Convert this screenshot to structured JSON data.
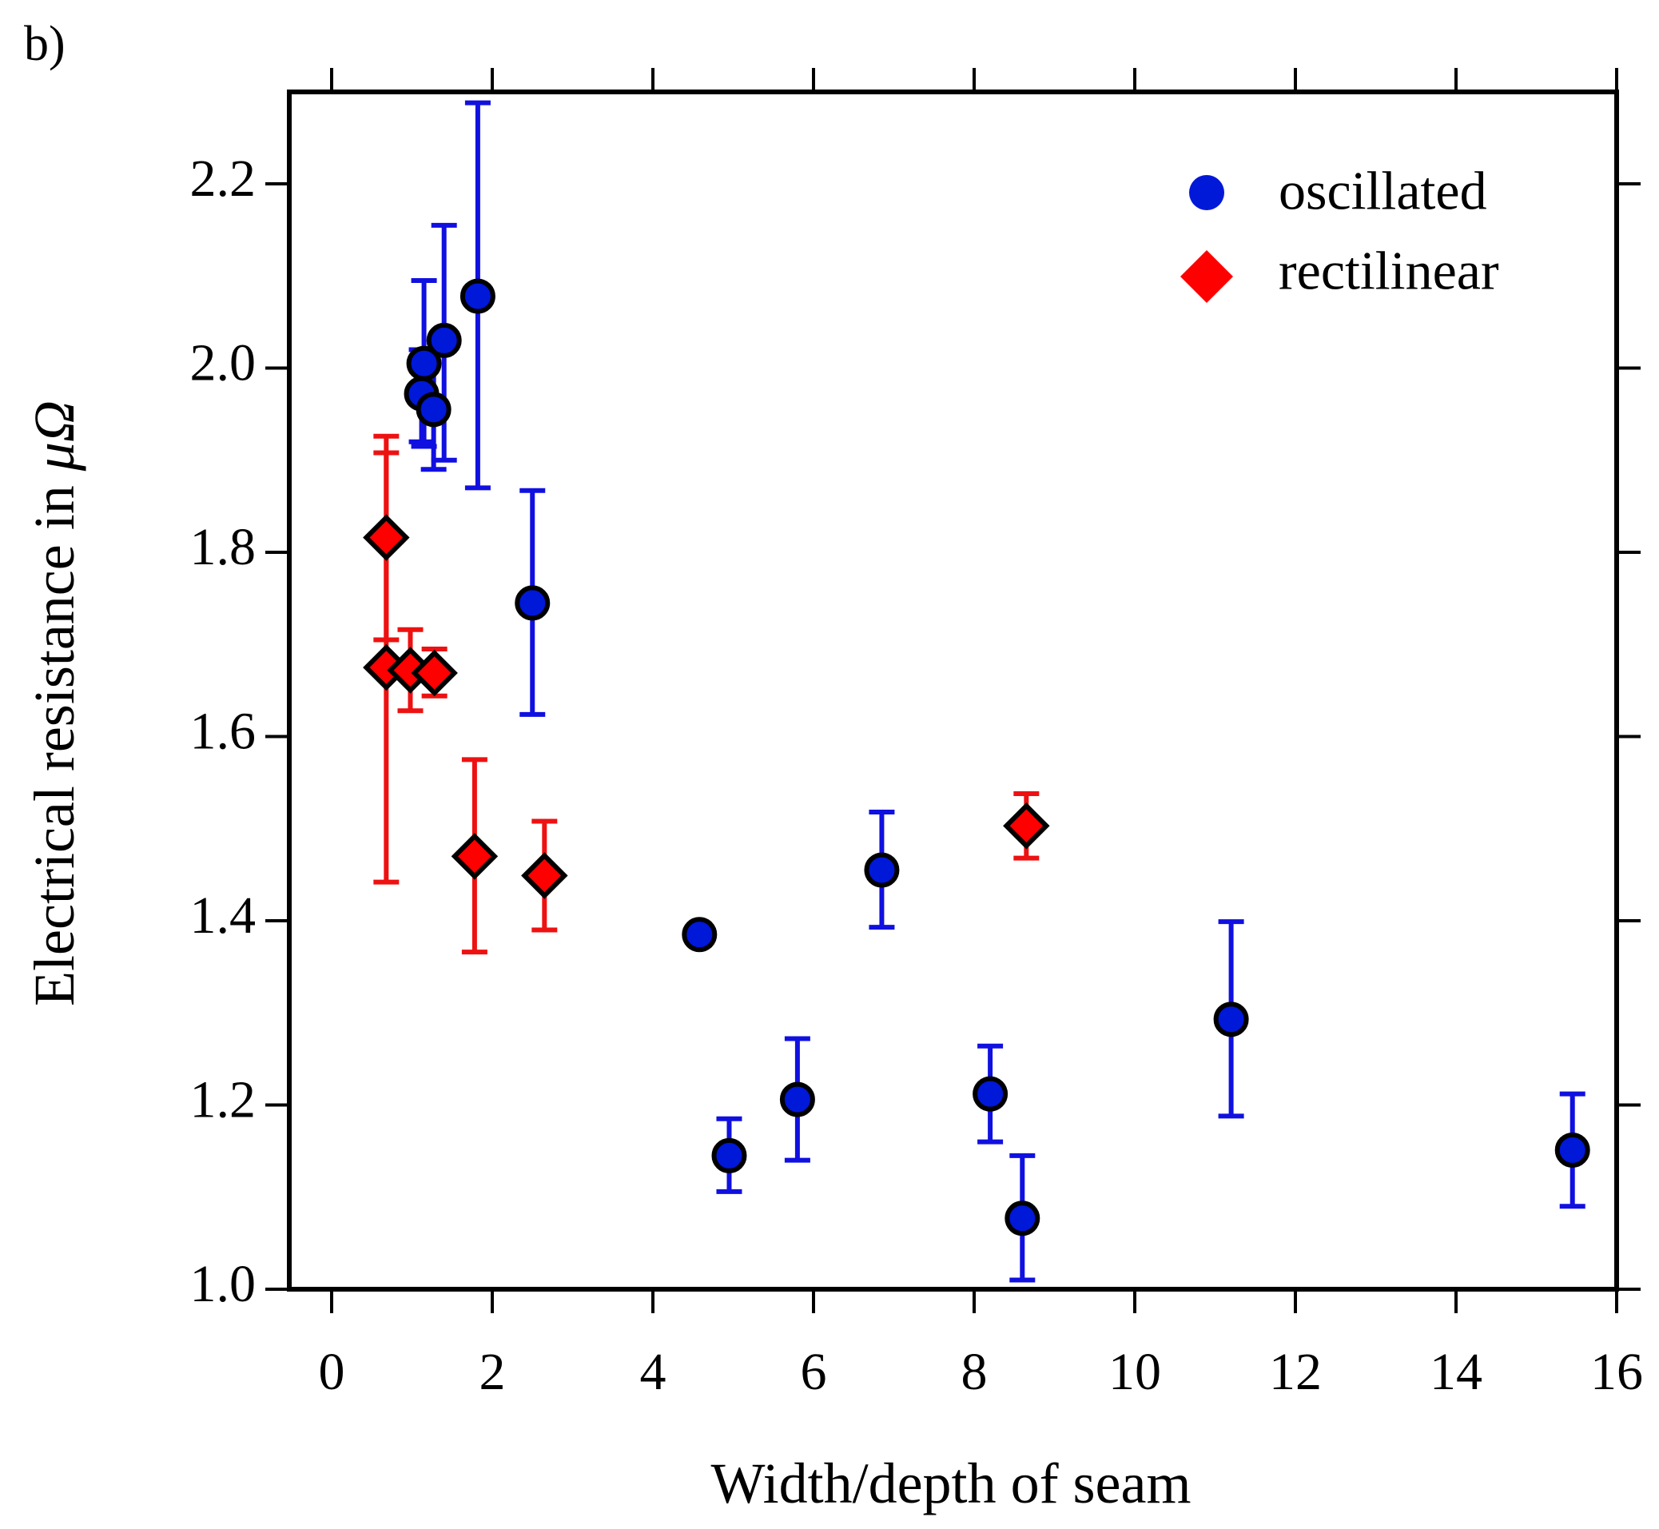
{
  "chart_data": {
    "type": "scatter",
    "panel_label": "b)",
    "xlabel": "Width/depth of seam",
    "ylabel_prefix": "Electrical resistance in ",
    "ylabel_unit": "μΩ",
    "xlim": [
      -0.5,
      16
    ],
    "ylim": [
      1.0,
      2.3
    ],
    "x_ticks": [
      0,
      2,
      4,
      6,
      8,
      10,
      12,
      14,
      16
    ],
    "x_tick_labels": [
      "0",
      "2",
      "4",
      "6",
      "8",
      "10",
      "12",
      "14",
      "16"
    ],
    "y_ticks": [
      1.0,
      1.2,
      1.4,
      1.6,
      1.8,
      2.0,
      2.2
    ],
    "y_tick_labels": [
      "1.0",
      "1.2",
      "1.4",
      "1.6",
      "1.8",
      "2.0",
      "2.2"
    ],
    "legend_position": "top-right",
    "colors": {
      "oscillated": "#0018d8",
      "oscillated_err": "#1010e0",
      "rectilinear": "#ff0000",
      "rectilinear_err": "#ee1111"
    },
    "series": [
      {
        "name": "oscillated",
        "marker": "circle",
        "points": [
          {
            "x": 1.15,
            "y": 2.005,
            "lo": 1.915,
            "hi": 2.095
          },
          {
            "x": 1.12,
            "y": 1.972,
            "lo": 1.92,
            "hi": 2.02
          },
          {
            "x": 1.27,
            "y": 1.955,
            "lo": 1.89,
            "hi": 2.02
          },
          {
            "x": 1.4,
            "y": 2.03,
            "lo": 1.9,
            "hi": 2.155
          },
          {
            "x": 1.82,
            "y": 2.078,
            "lo": 1.87,
            "hi": 2.288
          },
          {
            "x": 2.5,
            "y": 1.745,
            "lo": 1.624,
            "hi": 1.867
          },
          {
            "x": 4.58,
            "y": 1.385,
            "lo": null,
            "hi": null
          },
          {
            "x": 4.95,
            "y": 1.145,
            "lo": 1.106,
            "hi": 1.185
          },
          {
            "x": 5.8,
            "y": 1.206,
            "lo": 1.14,
            "hi": 1.272
          },
          {
            "x": 6.85,
            "y": 1.455,
            "lo": 1.393,
            "hi": 1.518
          },
          {
            "x": 8.2,
            "y": 1.212,
            "lo": 1.16,
            "hi": 1.264
          },
          {
            "x": 8.6,
            "y": 1.077,
            "lo": 1.01,
            "hi": 1.145
          },
          {
            "x": 11.2,
            "y": 1.293,
            "lo": 1.188,
            "hi": 1.399
          },
          {
            "x": 15.45,
            "y": 1.151,
            "lo": 1.09,
            "hi": 1.212
          }
        ]
      },
      {
        "name": "rectilinear",
        "marker": "diamond",
        "points": [
          {
            "x": 0.68,
            "y": 1.816,
            "lo": 1.705,
            "hi": 1.926
          },
          {
            "x": 0.68,
            "y": 1.675,
            "lo": 1.442,
            "hi": 1.908
          },
          {
            "x": 0.98,
            "y": 1.672,
            "lo": 1.628,
            "hi": 1.716
          },
          {
            "x": 1.28,
            "y": 1.669,
            "lo": 1.644,
            "hi": 1.695
          },
          {
            "x": 1.78,
            "y": 1.47,
            "lo": 1.366,
            "hi": 1.575
          },
          {
            "x": 2.65,
            "y": 1.449,
            "lo": 1.39,
            "hi": 1.508
          },
          {
            "x": 8.65,
            "y": 1.503,
            "lo": 1.468,
            "hi": 1.538
          }
        ]
      }
    ]
  }
}
